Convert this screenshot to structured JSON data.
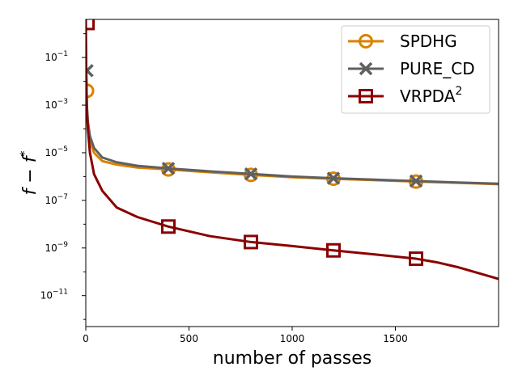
{
  "chart_data": {
    "type": "line",
    "title": "",
    "xlabel": "number of passes",
    "ylabel": "f − f*",
    "ylabel_main": "f − f",
    "ylabel_sup": "*",
    "xlim": [
      0,
      2000
    ],
    "ylim_log10": [
      -12.3,
      0.6
    ],
    "yscale": "log",
    "grid": false,
    "legend_position": "top-right",
    "x_ticks": [
      {
        "value": 0,
        "label": "0"
      },
      {
        "value": 500,
        "label": "500"
      },
      {
        "value": 1000,
        "label": "1000"
      },
      {
        "value": 1500,
        "label": "1500"
      }
    ],
    "y_ticks": [
      {
        "exp": -1,
        "base": "10",
        "sup": "−1"
      },
      {
        "exp": -3,
        "base": "10",
        "sup": "−3"
      },
      {
        "exp": -5,
        "base": "10",
        "sup": "−5"
      },
      {
        "exp": -7,
        "base": "10",
        "sup": "−7"
      },
      {
        "exp": -9,
        "base": "10",
        "sup": "−9"
      },
      {
        "exp": -11,
        "base": "10",
        "sup": "−11"
      }
    ],
    "series": [
      {
        "name": "SPDHG",
        "legend_main": "SPDHG",
        "legend_sup": "",
        "color": "#d98200",
        "marker": "circle",
        "x": [
          0,
          2,
          5,
          10,
          20,
          40,
          80,
          150,
          250,
          400,
          600,
          800,
          1000,
          1200,
          1400,
          1600,
          1800,
          2000
        ],
        "log10y": [
          -0.5,
          -2.4,
          -3.3,
          -3.9,
          -4.5,
          -5.0,
          -5.35,
          -5.5,
          -5.62,
          -5.7,
          -5.82,
          -5.93,
          -6.03,
          -6.09,
          -6.15,
          -6.21,
          -6.26,
          -6.32
        ],
        "markers_x": [
          6,
          400,
          800,
          1200,
          1600
        ],
        "markers_log10y": [
          -2.4,
          -5.7,
          -5.93,
          -6.09,
          -6.21
        ]
      },
      {
        "name": "PURE_CD",
        "legend_main": "PURE_CD",
        "legend_sup": "",
        "color": "#606060",
        "marker": "x",
        "x": [
          0,
          2,
          5,
          10,
          20,
          40,
          80,
          150,
          250,
          400,
          600,
          800,
          1000,
          1200,
          1400,
          1600,
          1800,
          2000
        ],
        "log10y": [
          -0.3,
          -1.5,
          -3.0,
          -3.7,
          -4.3,
          -4.8,
          -5.2,
          -5.4,
          -5.55,
          -5.66,
          -5.78,
          -5.89,
          -6.0,
          -6.07,
          -6.13,
          -6.19,
          -6.25,
          -6.3
        ],
        "markers_x": [
          6,
          400,
          800,
          1200,
          1600
        ],
        "markers_log10y": [
          -1.55,
          -5.66,
          -5.89,
          -6.07,
          -6.19
        ]
      },
      {
        "name": "VRPDA2",
        "legend_main": "VRPDA",
        "legend_sup": "2",
        "color": "#8b0000",
        "marker": "square",
        "x": [
          0,
          2,
          5,
          10,
          20,
          40,
          80,
          150,
          250,
          400,
          600,
          800,
          1000,
          1200,
          1400,
          1600,
          1700,
          1800,
          1900,
          2000
        ],
        "log10y": [
          0.7,
          -1.5,
          -3.0,
          -4.0,
          -5.0,
          -5.9,
          -6.6,
          -7.3,
          -7.7,
          -8.1,
          -8.5,
          -8.75,
          -8.92,
          -9.1,
          -9.27,
          -9.45,
          -9.6,
          -9.8,
          -10.05,
          -10.3
        ],
        "markers_x": [
          8,
          400,
          800,
          1200,
          1600
        ],
        "markers_log10y": [
          0.45,
          -8.1,
          -8.75,
          -9.1,
          -9.45
        ]
      }
    ]
  }
}
